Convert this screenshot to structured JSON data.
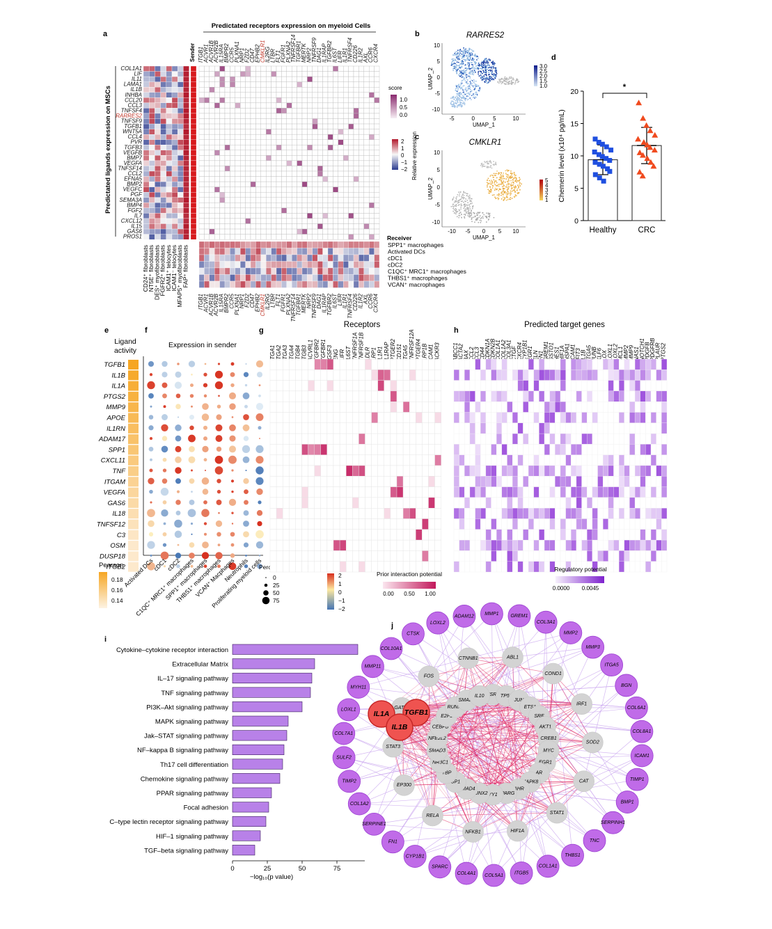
{
  "panels": [
    "a",
    "b",
    "c",
    "d",
    "e",
    "f",
    "g",
    "h",
    "i",
    "j"
  ],
  "panel_a": {
    "title": "Predictated receptors expression on myeloid Cells",
    "ylabel": "Predictated ligands expression on MSCs",
    "sender_label": "Sender",
    "receiver_label": "Receiver",
    "ligands": [
      "COL1A1",
      "LIF",
      "IL11",
      "LAMA1",
      "IL1B",
      "INHBA",
      "CCL20",
      "CCL3",
      "TNFSF4",
      "RARRES2",
      "TNFSF9",
      "TGFB1",
      "WNT5A",
      "CCL4",
      "PVR",
      "TGFB3",
      "VEGFB",
      "BMP7",
      "VEGFA",
      "TNFSF14",
      "CCL2",
      "EFNA5",
      "BMP2",
      "VEGFC",
      "PGF",
      "SEMA3A",
      "BMP4",
      "FGF2",
      "IL7",
      "CXCL12",
      "IL15",
      "GAS6",
      "PROS1"
    ],
    "highlight_ligand": "RARRES2",
    "receptors": [
      "ITGB1",
      "ACVR1",
      "ACVR1B",
      "ACVR2B",
      "IL15RA",
      "BMPR2",
      "CCR5",
      "PLXNA1",
      "NRP1",
      "FZD2",
      "CD47",
      "EPHB2",
      "CMKLR1",
      "IL2RG",
      "LTBR",
      "FLT1",
      "FGFR1",
      "PLXNA2",
      "TNFRSF14",
      "TGFBR1",
      "MERTK",
      "NRP2",
      "TNFRSF9",
      "DAG1",
      "IL1RAP",
      "TGFBR2",
      "IL6ST",
      "LIFR",
      "IL1R1",
      "TNFRSF4",
      "CD226",
      "IL1R2",
      "AXL",
      "CCR6",
      "CXCR4"
    ],
    "highlight_receptor": "CMKLR1",
    "sender_cells": [
      "CD24⁺ fibroblasts",
      "NT5E⁺ fibroblasts",
      "DES⁺ myofibroblasts",
      "FGFR2⁺ fibroblasts",
      "ICAM1⁺ telocytes",
      "ICAM1⁻ telocytes",
      "MFAP5⁺ myofibroblasts",
      "FAP⁺ fibroblasts"
    ],
    "receiver_cells": [
      "SPP1⁺ macrophages",
      "Activated DCs",
      "cDC1",
      "cDC2",
      "C1QC⁺ MRC1⁺ macrophages",
      "THBS1⁺ macrophages",
      "VCAN⁺ macrophages"
    ],
    "score_legend": {
      "title": "score",
      "ticks": [
        "1.0",
        "0.5",
        "0.0"
      ]
    },
    "expr_legend": {
      "title": "Relative expression",
      "ticks": [
        "2",
        "1",
        "0",
        "−1",
        "−2"
      ]
    }
  },
  "panel_b": {
    "title": "RARRES2",
    "xlabel": "UMAP_1",
    "ylabel": "UMAP_2",
    "xticks": [
      "-5",
      "0",
      "5",
      "10"
    ],
    "yticks": [
      "10",
      "5",
      "0",
      "-5",
      "-10"
    ],
    "legend": [
      "3.0",
      "2.5",
      "2.0",
      "1.5",
      "1.0"
    ]
  },
  "panel_c": {
    "title": "CMKLR1",
    "xlabel": "UMAP_1",
    "ylabel": "UMAP_2",
    "xticks": [
      "-10",
      "-5",
      "0",
      "5",
      "10"
    ],
    "yticks": [
      "10",
      "5",
      "0",
      "-5",
      "-10"
    ],
    "legend": [
      "5",
      "4",
      "3",
      "2",
      "1"
    ]
  },
  "panel_d": {
    "ylabel": "Chemerin level (x10⁴ pg/mL)",
    "significance": "*",
    "chart_data": {
      "type": "bar",
      "categories": [
        "Healthy",
        "CRC"
      ],
      "values": [
        9.4,
        11.6
      ],
      "error_sd": [
        2.3,
        2.8
      ],
      "ylim": [
        0,
        20
      ],
      "yticks": [
        "0",
        "5",
        "10",
        "15",
        "20"
      ],
      "points": {
        "Healthy": [
          12.6,
          12.1,
          11.8,
          11.4,
          10.9,
          10.6,
          10.2,
          9.9,
          9.6,
          9.3,
          9.0,
          8.7,
          8.4,
          8.0,
          7.6,
          7.1,
          6.6,
          6.1
        ],
        "CRC": [
          18.2,
          15.8,
          14.7,
          13.9,
          13.2,
          12.6,
          12.1,
          11.7,
          11.3,
          10.9,
          10.5,
          10.1,
          9.6,
          9.0,
          8.4,
          7.5,
          6.9
        ]
      },
      "colors": {
        "Healthy": "#1f4fe0",
        "CRC": "#f04a1e"
      }
    }
  },
  "panel_e": {
    "title": "Ligand activity",
    "legend_title": "Pearson",
    "legend_ticks": [
      "0.18",
      "0.16",
      "0.14"
    ]
  },
  "ligands_e": [
    "TGFB1",
    "IL1B",
    "IL1A",
    "PTGS2",
    "MMP9",
    "APOE",
    "IL1RN",
    "ADAM17",
    "SPP1",
    "CXCL11",
    "TNF",
    "ITGAM",
    "VEGFA",
    "GAS6",
    "IL18",
    "TNFSF12",
    "C3",
    "OSM",
    "DUSP18",
    "ITGB2"
  ],
  "panel_f": {
    "title": "Expression in sender",
    "cells": [
      "Activated DCs",
      "cDC1",
      "cDC2",
      "C1QC⁺ MRC1⁺ macrophages",
      "SPP1⁺ macrophages",
      "THBS1⁺ macrophages",
      "VCAN⁺ Macphages",
      "Neutrophils",
      "Proliferating myeloid cells"
    ],
    "pct_title": "Percent Expressed",
    "pct_ticks": [
      "0",
      "25",
      "50",
      "75"
    ],
    "avg_title": "Average Expression",
    "avg_ticks": [
      "2",
      "1",
      "0",
      "−1",
      "−2"
    ]
  },
  "panel_g": {
    "title": "Receptors",
    "receptors": [
      "ITGA1",
      "ITGA2",
      "ITGA3",
      "ITGA4",
      "ITGB4",
      "ITGB3",
      "ACVRL1",
      "TGFBR2",
      "TGFBR1",
      "IGSF3",
      "ENG",
      "LIFR",
      "IL6ST",
      "TNFRSF1A",
      "TNFRSF1B",
      "LDLR",
      "LRP1",
      "IL1R1",
      "IL1RAP",
      "PTGER2",
      "CD151",
      "ITGA5",
      "TNFRSF12A",
      "PTGER4",
      "LRP1B",
      "ICAM1",
      "ACKR3"
    ],
    "legend_title": "Prior interaction potential",
    "legend_ticks": [
      "0.00",
      "0.50",
      "1.00"
    ]
  },
  "panel_h": {
    "title": "Predicted target genes",
    "genes": [
      "ABCC1",
      "ACTA2",
      "BAX",
      "CCL2",
      "CCL3",
      "CD44",
      "CDKN1A",
      "CDKN2B",
      "COL1A1",
      "COL1A2",
      "COL3A1",
      "CTGF",
      "CXCR4",
      "CYP1B1",
      "EGR1",
      "ELN",
      "FN1",
      "GREM1",
      "GSTO1",
      "HES1",
      "HIF1A",
      "HSPA1",
      "ICAM1",
      "IFIT3",
      "IL1B",
      "ITGA5",
      "JUNB",
      "KLF6",
      "LOX",
      "LOXL1",
      "LOXL2",
      "MCL1",
      "MMP2",
      "MMP9",
      "NAS1",
      "NOTCH1",
      "PDGFB",
      "PDGFRB",
      "PLAUR",
      "PTGS2"
    ],
    "legend_title": "Regulatory potential",
    "legend_ticks": [
      "0.0000",
      "0.0045"
    ]
  },
  "panel_i": {
    "xlabel": "−log₁₀(p value)",
    "chart_data": {
      "type": "bar",
      "orientation": "horizontal",
      "categories": [
        "Cytokine–cytokine receptor interaction",
        "Extracellular Matrix",
        "IL–17 signaling pathway",
        "TNF signaling pathway",
        "PI3K–Akt signaling pathway",
        "MAPK signaling pathway",
        "Jak–STAT signaling pathway",
        "NF–kappa B signaling pathway",
        "Th17 cell differentiation",
        "Chemokine signaling pathway",
        "PPAR signaling pathway",
        "Focal adhesion",
        "C–type lectin receptor signaling pathway",
        "HIF–1 signaling pathway",
        "TGF–beta signaling pathway"
      ],
      "values": [
        90,
        59,
        57,
        56,
        50,
        40,
        39,
        37,
        36,
        34,
        28,
        26,
        24,
        20,
        16
      ],
      "xticks": [
        "0",
        "25",
        "50",
        "75"
      ],
      "xlim": [
        0,
        95
      ]
    }
  },
  "panel_j": {
    "ligand_nodes": [
      "IL1A",
      "TGFB1",
      "IL1B"
    ],
    "tf_nodes": [
      "ABL1",
      "COND1",
      "IRF1",
      "SOD2",
      "CAT",
      "STAT1",
      "HIF1A",
      "NFKB1",
      "RELA",
      "EP300",
      "STAT3",
      "GATA3",
      "FOS",
      "CTNNB1",
      "ESR1",
      "TP53",
      "JUN",
      "ETS1",
      "SRF",
      "AKT1",
      "CREB1",
      "MYC",
      "EGR1",
      "AR",
      "MAPK8",
      "AHR",
      "PPARG",
      "YY1",
      "RUNX2",
      "SMAD4",
      "SP1",
      "TBP",
      "NR3C1",
      "SMAD3",
      "NFE2L2",
      "CEBPB",
      "E2F1",
      "RUNX1",
      "SMAD2",
      "IL10"
    ],
    "target_nodes": [
      "LOXL2",
      "ADAM12",
      "MMP1",
      "GREM1",
      "COL3A1",
      "MMP2",
      "MMP3",
      "ITGA5",
      "BGN",
      "COL6A1",
      "COL8A1",
      "ICAM1",
      "TIMP1",
      "BMP1",
      "SERPINH1",
      "TNC",
      "THBS1",
      "COL1A1",
      "ITGB5",
      "COL5A1",
      "COL4A1",
      "SPARC",
      "CYP1B1",
      "FN1",
      "SERPINE1",
      "COL1A2",
      "TIMP2",
      "SULF2",
      "COL7A1",
      "LOXL1",
      "MYH11",
      "MMP11",
      "COL10A1",
      "CTSK"
    ]
  }
}
